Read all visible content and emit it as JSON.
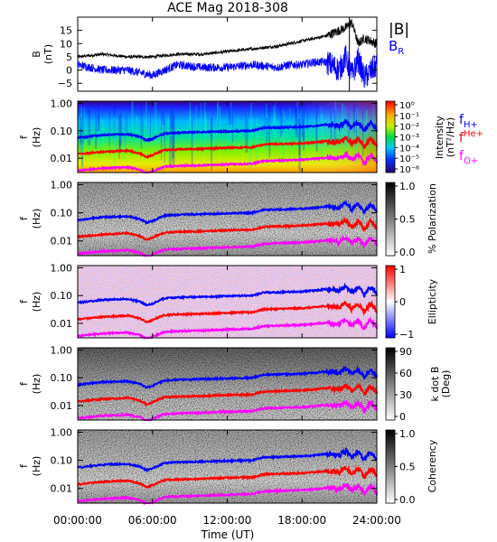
{
  "figure": {
    "title": "ACE Mag 2018-308"
  },
  "colors": {
    "black": "#000000",
    "blue": "#0000ff",
    "red": "#ff0000",
    "magenta": "#ff00ff"
  },
  "chart_data": [
    {
      "type": "line",
      "panel_id": "mag",
      "ylabel": "B (nT)",
      "ylim": [
        -8,
        20
      ],
      "yticks": [
        -5,
        0,
        5,
        10,
        15
      ],
      "ytick_labels": [
        "−5",
        "0",
        "5",
        "10",
        "15"
      ],
      "x": [
        0,
        2,
        4,
        6,
        8,
        10,
        12,
        14,
        16,
        17,
        18,
        19,
        20,
        21,
        21.5,
        22,
        22.5,
        23,
        24
      ],
      "series": [
        {
          "name": "|B|",
          "color": "#000000",
          "values": [
            5,
            6,
            5,
            5,
            6,
            6,
            7,
            8,
            9,
            10,
            11,
            12,
            13,
            15,
            16,
            18,
            10,
            12,
            10
          ]
        },
        {
          "name": "B_R",
          "color": "#0000ff",
          "values": [
            2,
            0,
            0,
            -2,
            2,
            1,
            1,
            2,
            1,
            2,
            2,
            3,
            3,
            0,
            5,
            -2,
            4,
            -3,
            2
          ]
        }
      ],
      "legend": {
        "position": "right",
        "entries": [
          "|B|",
          "B_R"
        ]
      },
      "vertical_marker_x": 21.8
    },
    {
      "type": "heatmap",
      "panel_id": "intensity",
      "ylabel": "f (Hz)",
      "yscale": "log",
      "ylim": [
        0.003,
        1.2
      ],
      "ytick_labels": [
        "1.00",
        "0.10",
        "0.01"
      ],
      "colorbar": {
        "label": "Intensity (nT²/Hz)",
        "tick_labels": [
          "10⁰",
          "10⁻¹",
          "10⁻²",
          "10⁻³",
          "10⁻⁴",
          "10⁻⁵",
          "10⁻⁶"
        ]
      },
      "legend": {
        "position": "right",
        "entries": [
          "f_H+",
          "f_He+",
          "f_O+"
        ]
      }
    },
    {
      "type": "heatmap",
      "panel_id": "polarization",
      "ylabel": "f (Hz)",
      "yscale": "log",
      "ylim": [
        0.003,
        1.2
      ],
      "ytick_labels": [
        "1.00",
        "0.10",
        "0.01"
      ],
      "colorbar": {
        "label": "% Polarization",
        "tick_labels": [
          "1.0",
          "0.5",
          "0.0"
        ]
      }
    },
    {
      "type": "heatmap",
      "panel_id": "ellipticity",
      "ylabel": "f (Hz)",
      "yscale": "log",
      "ylim": [
        0.003,
        1.2
      ],
      "ytick_labels": [
        "1.00",
        "0.10",
        "0.01"
      ],
      "colorbar": {
        "label": "Ellipticity",
        "tick_labels": [
          "1",
          "0",
          "−1"
        ]
      }
    },
    {
      "type": "heatmap",
      "panel_id": "kdotb",
      "ylabel": "f (Hz)",
      "yscale": "log",
      "ylim": [
        0.003,
        1.2
      ],
      "ytick_labels": [
        "1.00",
        "0.10",
        "0.01"
      ],
      "colorbar": {
        "label": "k dot B (Deg)",
        "tick_labels": [
          "90",
          "60",
          "30",
          "0"
        ]
      }
    },
    {
      "type": "heatmap",
      "panel_id": "coherency",
      "ylabel": "f (Hz)",
      "yscale": "log",
      "ylim": [
        0.003,
        1.2
      ],
      "ytick_labels": [
        "1.00",
        "0.10",
        "0.01"
      ],
      "colorbar": {
        "label": "Coherency",
        "tick_labels": [
          "1.0",
          "0.5",
          "0.0"
        ]
      },
      "xlabel": "Time (UT)",
      "xtick_labels": [
        "00:00:00",
        "06:00:00",
        "12:00:00",
        "18:00:00",
        "24:00:00"
      ]
    }
  ],
  "gyrofrequency_lines": {
    "x": [
      0,
      2,
      4,
      5,
      5.5,
      6,
      7,
      8,
      10,
      12,
      14,
      15,
      16,
      18,
      19,
      20,
      21,
      21.5,
      22,
      22.5,
      23,
      23.5,
      24
    ],
    "series": [
      {
        "name": "f_H+",
        "color": "#0000ff",
        "values": [
          0.055,
          0.07,
          0.075,
          0.06,
          0.045,
          0.05,
          0.08,
          0.085,
          0.09,
          0.095,
          0.1,
          0.13,
          0.13,
          0.14,
          0.15,
          0.17,
          0.15,
          0.22,
          0.13,
          0.2,
          0.1,
          0.2,
          0.11
        ]
      },
      {
        "name": "f_He+",
        "color": "#ff0000",
        "values": [
          0.014,
          0.017,
          0.019,
          0.015,
          0.011,
          0.013,
          0.02,
          0.021,
          0.022,
          0.024,
          0.025,
          0.032,
          0.033,
          0.035,
          0.038,
          0.042,
          0.038,
          0.055,
          0.032,
          0.05,
          0.025,
          0.05,
          0.028
        ]
      },
      {
        "name": "f_O+",
        "color": "#ff00ff",
        "values": [
          0.0035,
          0.0043,
          0.0047,
          0.0038,
          0.0028,
          0.0032,
          0.005,
          0.0052,
          0.0055,
          0.006,
          0.0063,
          0.008,
          0.0082,
          0.0088,
          0.0095,
          0.0105,
          0.0095,
          0.0138,
          0.008,
          0.0125,
          0.0063,
          0.0125,
          0.007
        ]
      }
    ]
  }
}
